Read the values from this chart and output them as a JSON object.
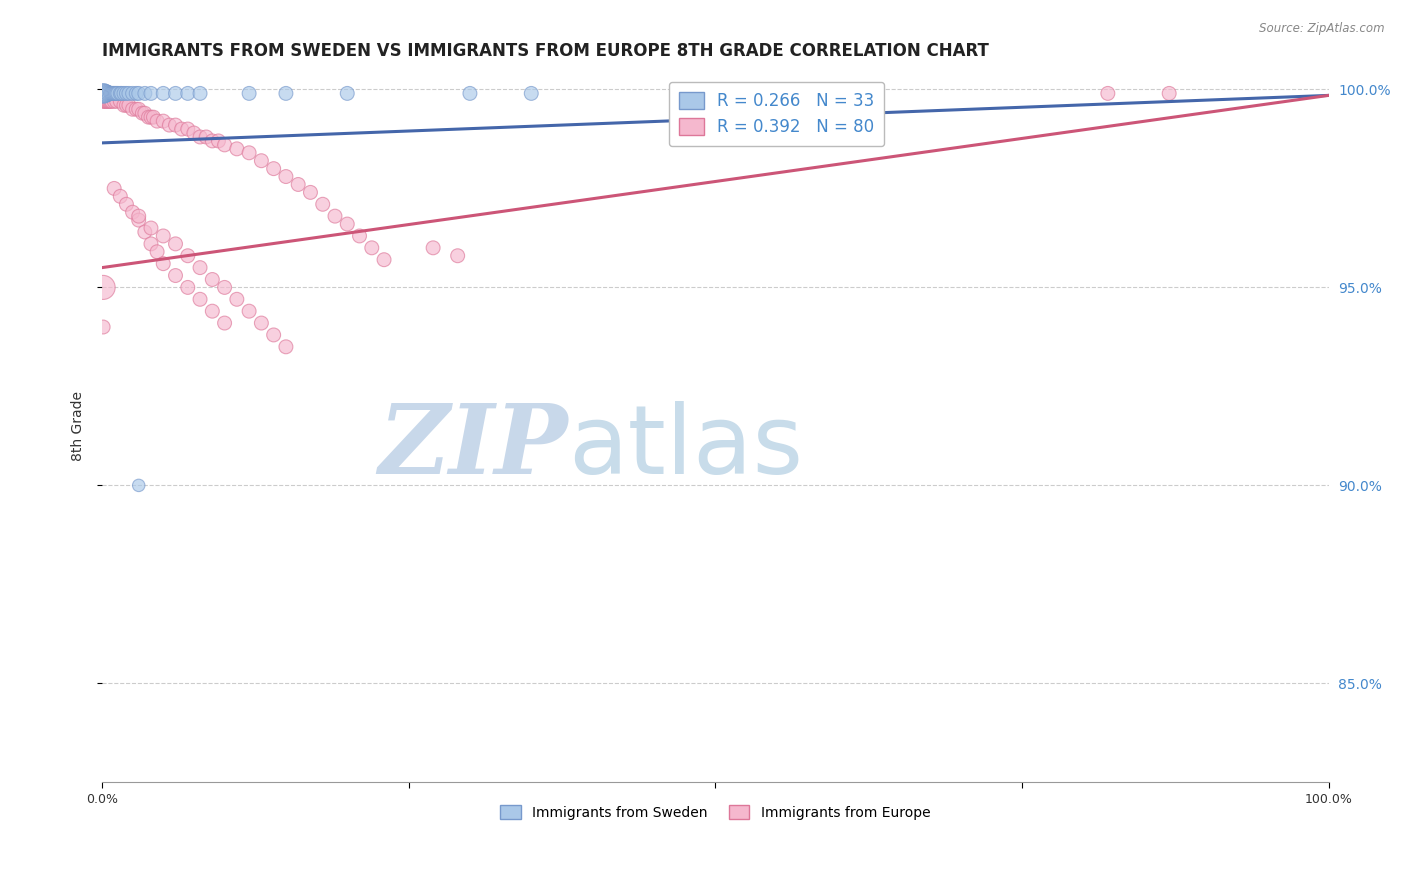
{
  "title": "IMMIGRANTS FROM SWEDEN VS IMMIGRANTS FROM EUROPE 8TH GRADE CORRELATION CHART",
  "source_text": "Source: ZipAtlas.com",
  "ylabel": "8th Grade",
  "legend_entries": [
    {
      "label": "R = 0.266   N = 33",
      "color": "#a8c4e0"
    },
    {
      "label": "R = 0.392   N = 80",
      "color": "#f4a8b8"
    }
  ],
  "bottom_legend": [
    {
      "label": "Immigrants from Sweden",
      "color": "#a8c4e0"
    },
    {
      "label": "Immigrants from Europe",
      "color": "#f4a8b8"
    }
  ],
  "xlim": [
    0.0,
    1.0
  ],
  "ylim": [
    0.825,
    1.005
  ],
  "yticks": [
    0.85,
    0.9,
    0.95,
    1.0
  ],
  "ytick_labels": [
    "85.0%",
    "90.0%",
    "95.0%",
    "100.0%"
  ],
  "xticks": [
    0.0,
    0.25,
    0.5,
    0.75,
    1.0
  ],
  "xtick_labels": [
    "0.0%",
    "",
    "",
    "",
    "100.0%"
  ],
  "watermark_part1": "ZIP",
  "watermark_part2": "atlas",
  "blue_scatter_color": "#aac8e8",
  "pink_scatter_color": "#f5b8ce",
  "blue_edge_color": "#7799cc",
  "pink_edge_color": "#dd7799",
  "blue_line_color": "#4466aa",
  "pink_line_color": "#cc5577",
  "blue_trend": [
    0.0,
    0.9865,
    1.0,
    0.9985
  ],
  "pink_trend": [
    0.0,
    0.955,
    1.0,
    0.9985
  ],
  "sweden_x": [
    0.001,
    0.002,
    0.003,
    0.004,
    0.005,
    0.006,
    0.007,
    0.008,
    0.009,
    0.01,
    0.011,
    0.012,
    0.013,
    0.015,
    0.016,
    0.018,
    0.02,
    0.022,
    0.025,
    0.028,
    0.03,
    0.035,
    0.04,
    0.05,
    0.06,
    0.07,
    0.08,
    0.12,
    0.15,
    0.2,
    0.3,
    0.35,
    0.03
  ],
  "sweden_y": [
    0.999,
    0.999,
    0.999,
    0.999,
    0.999,
    0.999,
    0.999,
    0.999,
    0.999,
    0.999,
    0.999,
    0.999,
    0.999,
    0.999,
    0.999,
    0.999,
    0.999,
    0.999,
    0.999,
    0.999,
    0.999,
    0.999,
    0.999,
    0.999,
    0.999,
    0.999,
    0.999,
    0.999,
    0.999,
    0.999,
    0.999,
    0.999,
    0.9
  ],
  "sweden_sizes": [
    200,
    180,
    160,
    140,
    120,
    110,
    100,
    100,
    100,
    100,
    100,
    100,
    100,
    100,
    100,
    100,
    100,
    100,
    100,
    100,
    100,
    100,
    100,
    100,
    100,
    100,
    100,
    100,
    100,
    100,
    100,
    100,
    80
  ],
  "europe_x": [
    0.001,
    0.002,
    0.003,
    0.004,
    0.005,
    0.006,
    0.007,
    0.008,
    0.01,
    0.012,
    0.015,
    0.018,
    0.02,
    0.022,
    0.025,
    0.028,
    0.03,
    0.033,
    0.035,
    0.038,
    0.04,
    0.042,
    0.045,
    0.05,
    0.055,
    0.06,
    0.065,
    0.07,
    0.075,
    0.08,
    0.085,
    0.09,
    0.095,
    0.1,
    0.11,
    0.12,
    0.13,
    0.14,
    0.15,
    0.16,
    0.17,
    0.18,
    0.19,
    0.2,
    0.21,
    0.22,
    0.23,
    0.01,
    0.015,
    0.02,
    0.025,
    0.03,
    0.035,
    0.04,
    0.045,
    0.05,
    0.06,
    0.07,
    0.08,
    0.09,
    0.1,
    0.03,
    0.04,
    0.05,
    0.06,
    0.07,
    0.08,
    0.09,
    0.1,
    0.11,
    0.12,
    0.13,
    0.14,
    0.15,
    0.27,
    0.29,
    0.82,
    0.87,
    0.001,
    0.001
  ],
  "europe_y": [
    0.997,
    0.997,
    0.997,
    0.997,
    0.997,
    0.997,
    0.997,
    0.997,
    0.997,
    0.997,
    0.997,
    0.996,
    0.996,
    0.996,
    0.995,
    0.995,
    0.995,
    0.994,
    0.994,
    0.993,
    0.993,
    0.993,
    0.992,
    0.992,
    0.991,
    0.991,
    0.99,
    0.99,
    0.989,
    0.988,
    0.988,
    0.987,
    0.987,
    0.986,
    0.985,
    0.984,
    0.982,
    0.98,
    0.978,
    0.976,
    0.974,
    0.971,
    0.968,
    0.966,
    0.963,
    0.96,
    0.957,
    0.975,
    0.973,
    0.971,
    0.969,
    0.967,
    0.964,
    0.961,
    0.959,
    0.956,
    0.953,
    0.95,
    0.947,
    0.944,
    0.941,
    0.968,
    0.965,
    0.963,
    0.961,
    0.958,
    0.955,
    0.952,
    0.95,
    0.947,
    0.944,
    0.941,
    0.938,
    0.935,
    0.96,
    0.958,
    0.999,
    0.999,
    0.95,
    0.94
  ],
  "europe_sizes": [
    100,
    100,
    100,
    100,
    100,
    100,
    100,
    100,
    100,
    100,
    100,
    100,
    100,
    100,
    100,
    100,
    100,
    100,
    100,
    100,
    100,
    100,
    100,
    100,
    100,
    100,
    100,
    100,
    100,
    100,
    100,
    100,
    100,
    100,
    100,
    100,
    100,
    100,
    100,
    100,
    100,
    100,
    100,
    100,
    100,
    100,
    100,
    100,
    100,
    100,
    100,
    100,
    100,
    100,
    100,
    100,
    100,
    100,
    100,
    100,
    100,
    100,
    100,
    100,
    100,
    100,
    100,
    100,
    100,
    100,
    100,
    100,
    100,
    100,
    100,
    100,
    100,
    100,
    300,
    100
  ],
  "grid_color": "#cccccc",
  "bg_color": "#ffffff",
  "watermark_color1": "#c8d8ea",
  "watermark_color2": "#c8dcea",
  "watermark_fontsize": 70,
  "title_fontsize": 12,
  "axis_fontsize": 10,
  "tick_fontsize": 9,
  "right_axis_color": "#4488cc"
}
